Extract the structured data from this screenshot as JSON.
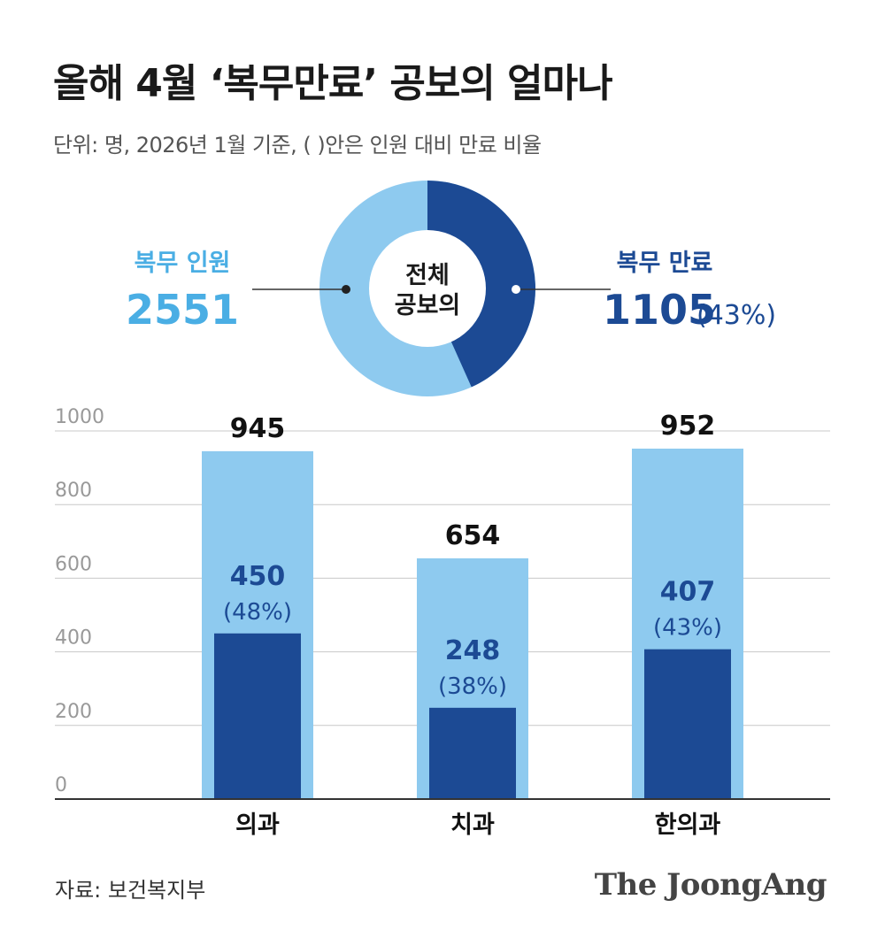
{
  "header": {
    "title": "올해 4월 ‘복무만료’ 공보의 얼마나",
    "subtitle": "단위: 명, 2026년 1월 기준, ( )안은 인원 대비 만료 비율"
  },
  "colors": {
    "light": "#8ecaef",
    "dark": "#1c4a94",
    "light_text": "#4aaee4",
    "grid": "#c8c8c8",
    "axis": "#333333"
  },
  "chart_data": [
    {
      "type": "pie",
      "center_label": [
        "전체",
        "공보의"
      ],
      "total_label": "복무 인원",
      "total_value": 2551,
      "expired_label": "복무 만료",
      "expired_value": 1105,
      "expired_pct": "(43%)"
    },
    {
      "type": "bar",
      "categories": [
        "의과",
        "치과",
        "한의과"
      ],
      "series": [
        {
          "name": "복무 인원",
          "values": [
            945,
            654,
            952
          ]
        },
        {
          "name": "복무 만료",
          "values": [
            450,
            248,
            407
          ]
        }
      ],
      "pct_labels": [
        "(48%)",
        "(38%)",
        "(43%)"
      ],
      "ylim": [
        0,
        1000
      ],
      "yticks": [
        0,
        200,
        400,
        600,
        800,
        1000
      ]
    }
  ],
  "footer": {
    "source": "자료: 보건복지부",
    "brand": "The JoongAng"
  }
}
